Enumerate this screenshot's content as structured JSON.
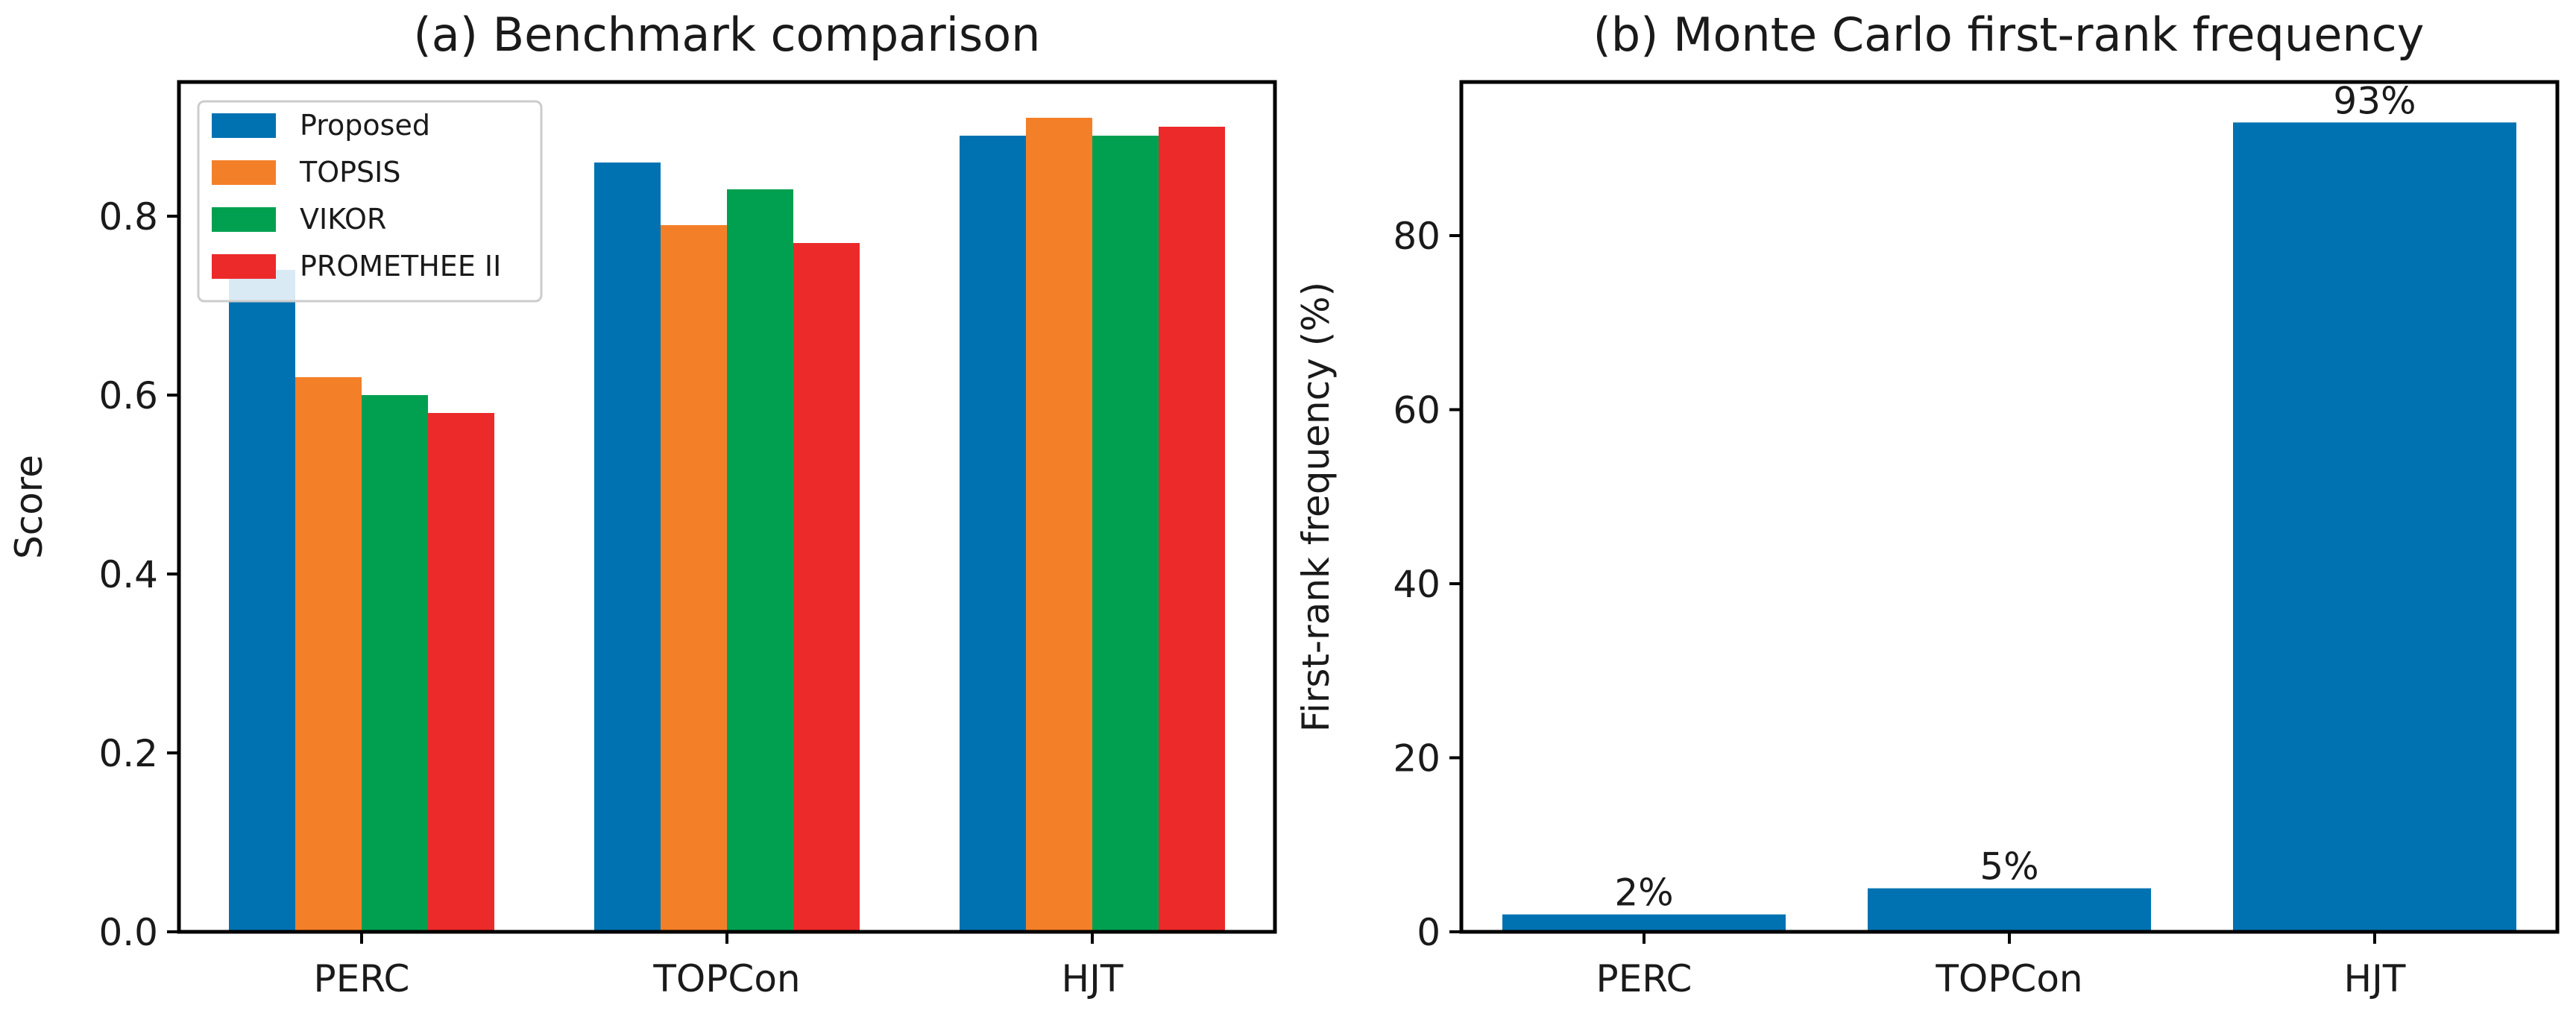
{
  "chart_data": [
    {
      "type": "bar",
      "title": "(a) Benchmark comparison",
      "xlabel": "",
      "ylabel": "Score",
      "categories": [
        "PERC",
        "TOPCon",
        "HJT"
      ],
      "series": [
        {
          "name": "Proposed",
          "values": [
            0.74,
            0.86,
            0.89
          ],
          "color": "#0072b2"
        },
        {
          "name": "TOPSIS",
          "values": [
            0.62,
            0.79,
            0.91
          ],
          "color": "#f47f29"
        },
        {
          "name": "VIKOR",
          "values": [
            0.6,
            0.83,
            0.89
          ],
          "color": "#00a050"
        },
        {
          "name": "PROMETHEE II",
          "values": [
            0.58,
            0.77,
            0.9
          ],
          "color": "#ec2a2a"
        }
      ],
      "ylim": [
        0,
        0.95
      ],
      "yticks": [
        0.0,
        0.2,
        0.4,
        0.6,
        0.8
      ],
      "ytick_labels": [
        "0.0",
        "0.2",
        "0.4",
        "0.6",
        "0.8"
      ],
      "grid": false,
      "legend_position": "top-left"
    },
    {
      "type": "bar",
      "title": "(b) Monte Carlo first-rank frequency",
      "xlabel": "",
      "ylabel": "First-rank frequency (%)",
      "categories": [
        "PERC",
        "TOPCon",
        "HJT"
      ],
      "values": [
        2,
        5,
        93
      ],
      "data_labels": [
        "2%",
        "5%",
        "93%"
      ],
      "color": "#0072b2",
      "ylim": [
        0,
        97.65
      ],
      "yticks": [
        0,
        20,
        40,
        60,
        80
      ],
      "ytick_labels": [
        "0",
        "20",
        "40",
        "60",
        "80"
      ],
      "grid": false
    }
  ]
}
